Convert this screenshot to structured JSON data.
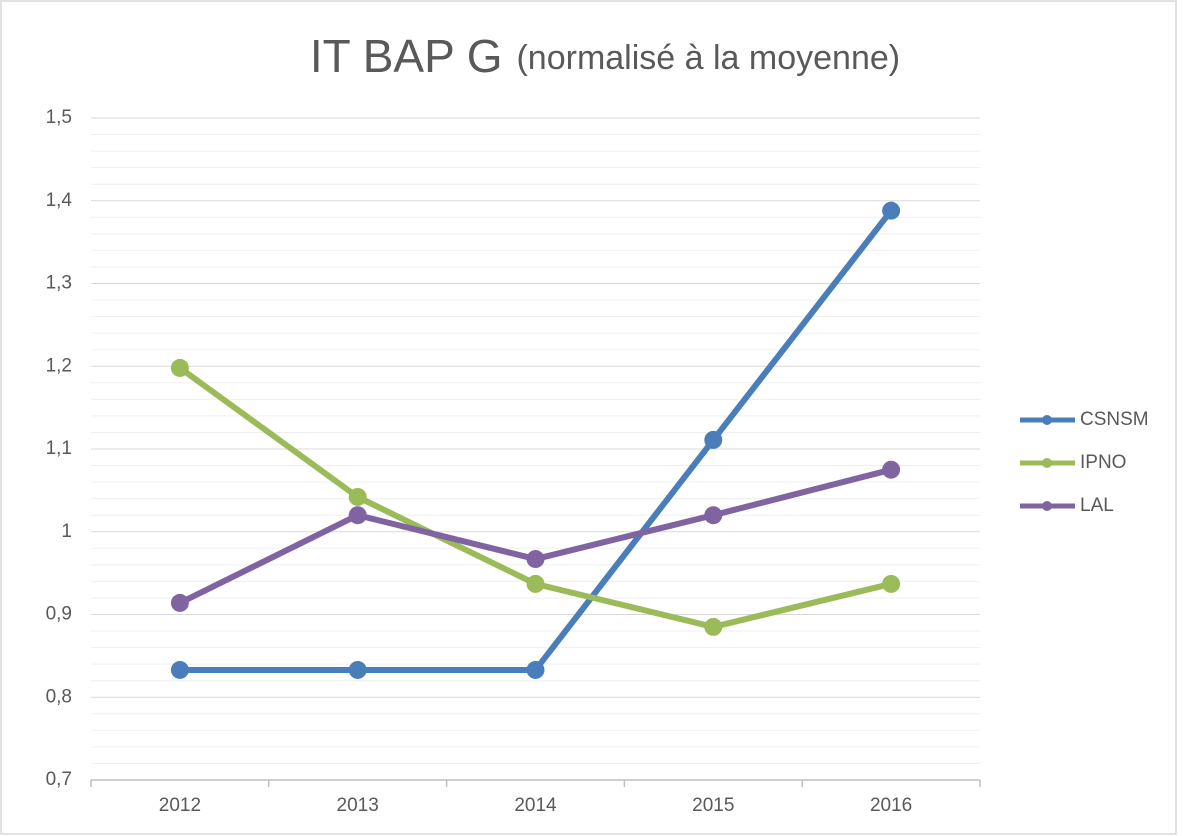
{
  "chart_data": {
    "type": "line",
    "title": "IT BAP G",
    "subtitle": "(normalisé à la moyenne)",
    "categories": [
      "2012",
      "2013",
      "2014",
      "2015",
      "2016"
    ],
    "series": [
      {
        "name": "CSNSM",
        "color": "#4a7ebb",
        "values": [
          0.833,
          0.833,
          0.833,
          1.111,
          1.388
        ]
      },
      {
        "name": "IPNO",
        "color": "#9bbb59",
        "values": [
          1.198,
          1.042,
          0.937,
          0.885,
          0.937
        ]
      },
      {
        "name": "LAL",
        "color": "#8064a2",
        "values": [
          0.914,
          1.02,
          0.967,
          1.02,
          1.075
        ]
      }
    ],
    "ylim": [
      0.7,
      1.5
    ],
    "yticks": [
      {
        "value": 0.7,
        "label": "0,7"
      },
      {
        "value": 0.8,
        "label": "0,8"
      },
      {
        "value": 0.9,
        "label": "0,9"
      },
      1,
      {
        "value": 1.1,
        "label": "1,1"
      },
      {
        "value": 1.2,
        "label": "1,2"
      },
      {
        "value": 1.3,
        "label": "1,3"
      },
      {
        "value": 1.4,
        "label": "1,4"
      },
      {
        "value": 1.5,
        "label": "1,5"
      }
    ],
    "grid": true,
    "minor_grid": true,
    "legend": "right"
  }
}
